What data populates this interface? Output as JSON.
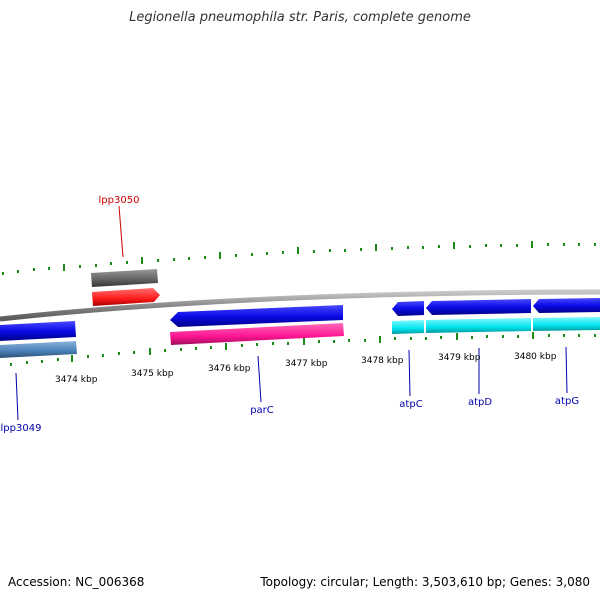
{
  "title": "Legionella pneumophila str. Paris, complete genome",
  "footer": {
    "accession": "Accession: NC_006368",
    "summary": "Topology: circular; Length: 3,503,610 bp; Genes: 3,080"
  },
  "ticks": [
    {
      "label": "3474 kbp"
    },
    {
      "label": "3475 kbp"
    },
    {
      "label": "3476 kbp"
    },
    {
      "label": "3477 kbp"
    },
    {
      "label": "3478 kbp"
    },
    {
      "label": "3479 kbp"
    },
    {
      "label": "3480 kbp"
    }
  ],
  "genes": [
    {
      "name": "lpp3050",
      "color": "#cc0000"
    },
    {
      "name": "lpp3049",
      "color": "#0000aa"
    },
    {
      "name": "parC",
      "color": "#0000aa"
    },
    {
      "name": "atpC",
      "color": "#0000aa"
    },
    {
      "name": "atpD",
      "color": "#0000aa"
    },
    {
      "name": "atpG",
      "color": "#0000aa"
    }
  ],
  "colors": {
    "backbone": "#8a8a8a",
    "cds_blue": "#0a0ae6",
    "trna_grey": "#606060",
    "rrna_red": "#ff1a1a",
    "pink": "#ff1493",
    "cyan": "#00e5ee",
    "steel": "#4a7fb5",
    "tick_green": "#1a8a1a"
  }
}
